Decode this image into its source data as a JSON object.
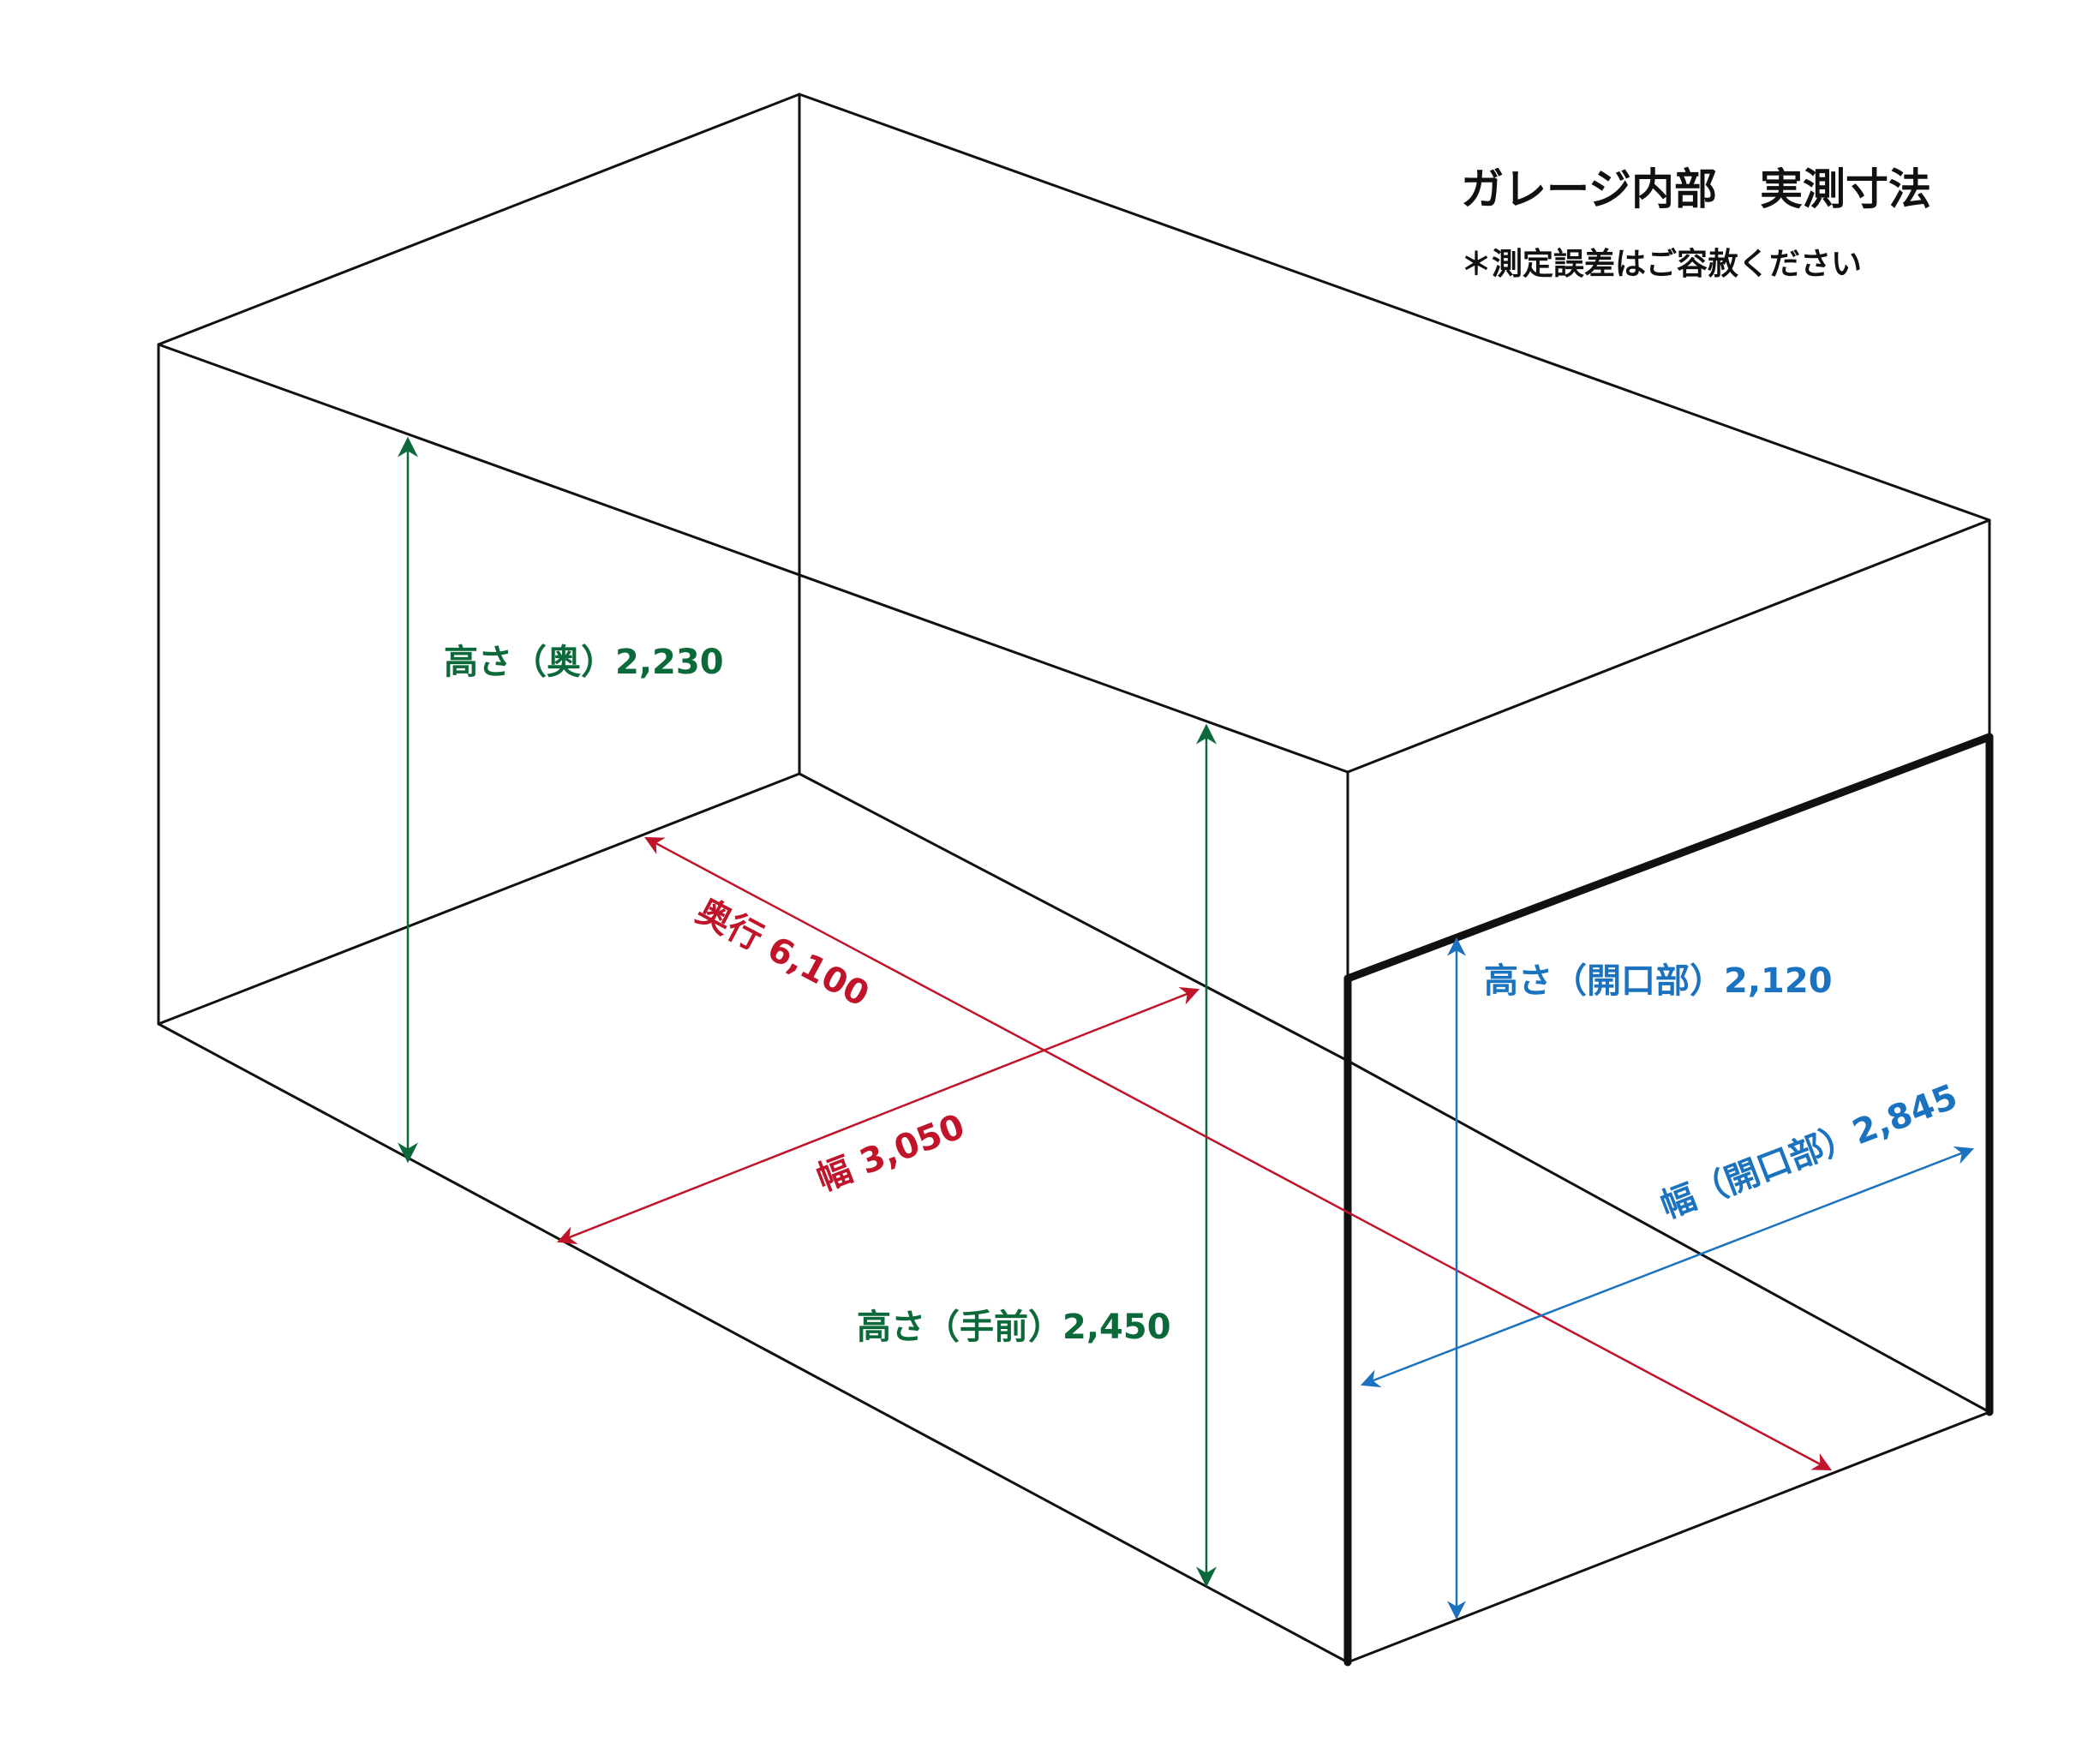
{
  "title": "ガレージ内部　実測寸法",
  "note": "＊測定誤差はご容赦ください",
  "labels": {
    "height_back": "高さ（奥）2,230",
    "height_front": "高さ（手前）2,450",
    "depth": "奥行 6,100",
    "width": "幅 3,050",
    "opening_height": "高さ（開口部）2,120",
    "opening_width": "幅（開口部）2,845"
  },
  "colors": {
    "outline": "#111111",
    "height_arrows": "#0c6a3a",
    "floor_arrows": "#c0142a",
    "opening_arrows": "#1b72be"
  }
}
